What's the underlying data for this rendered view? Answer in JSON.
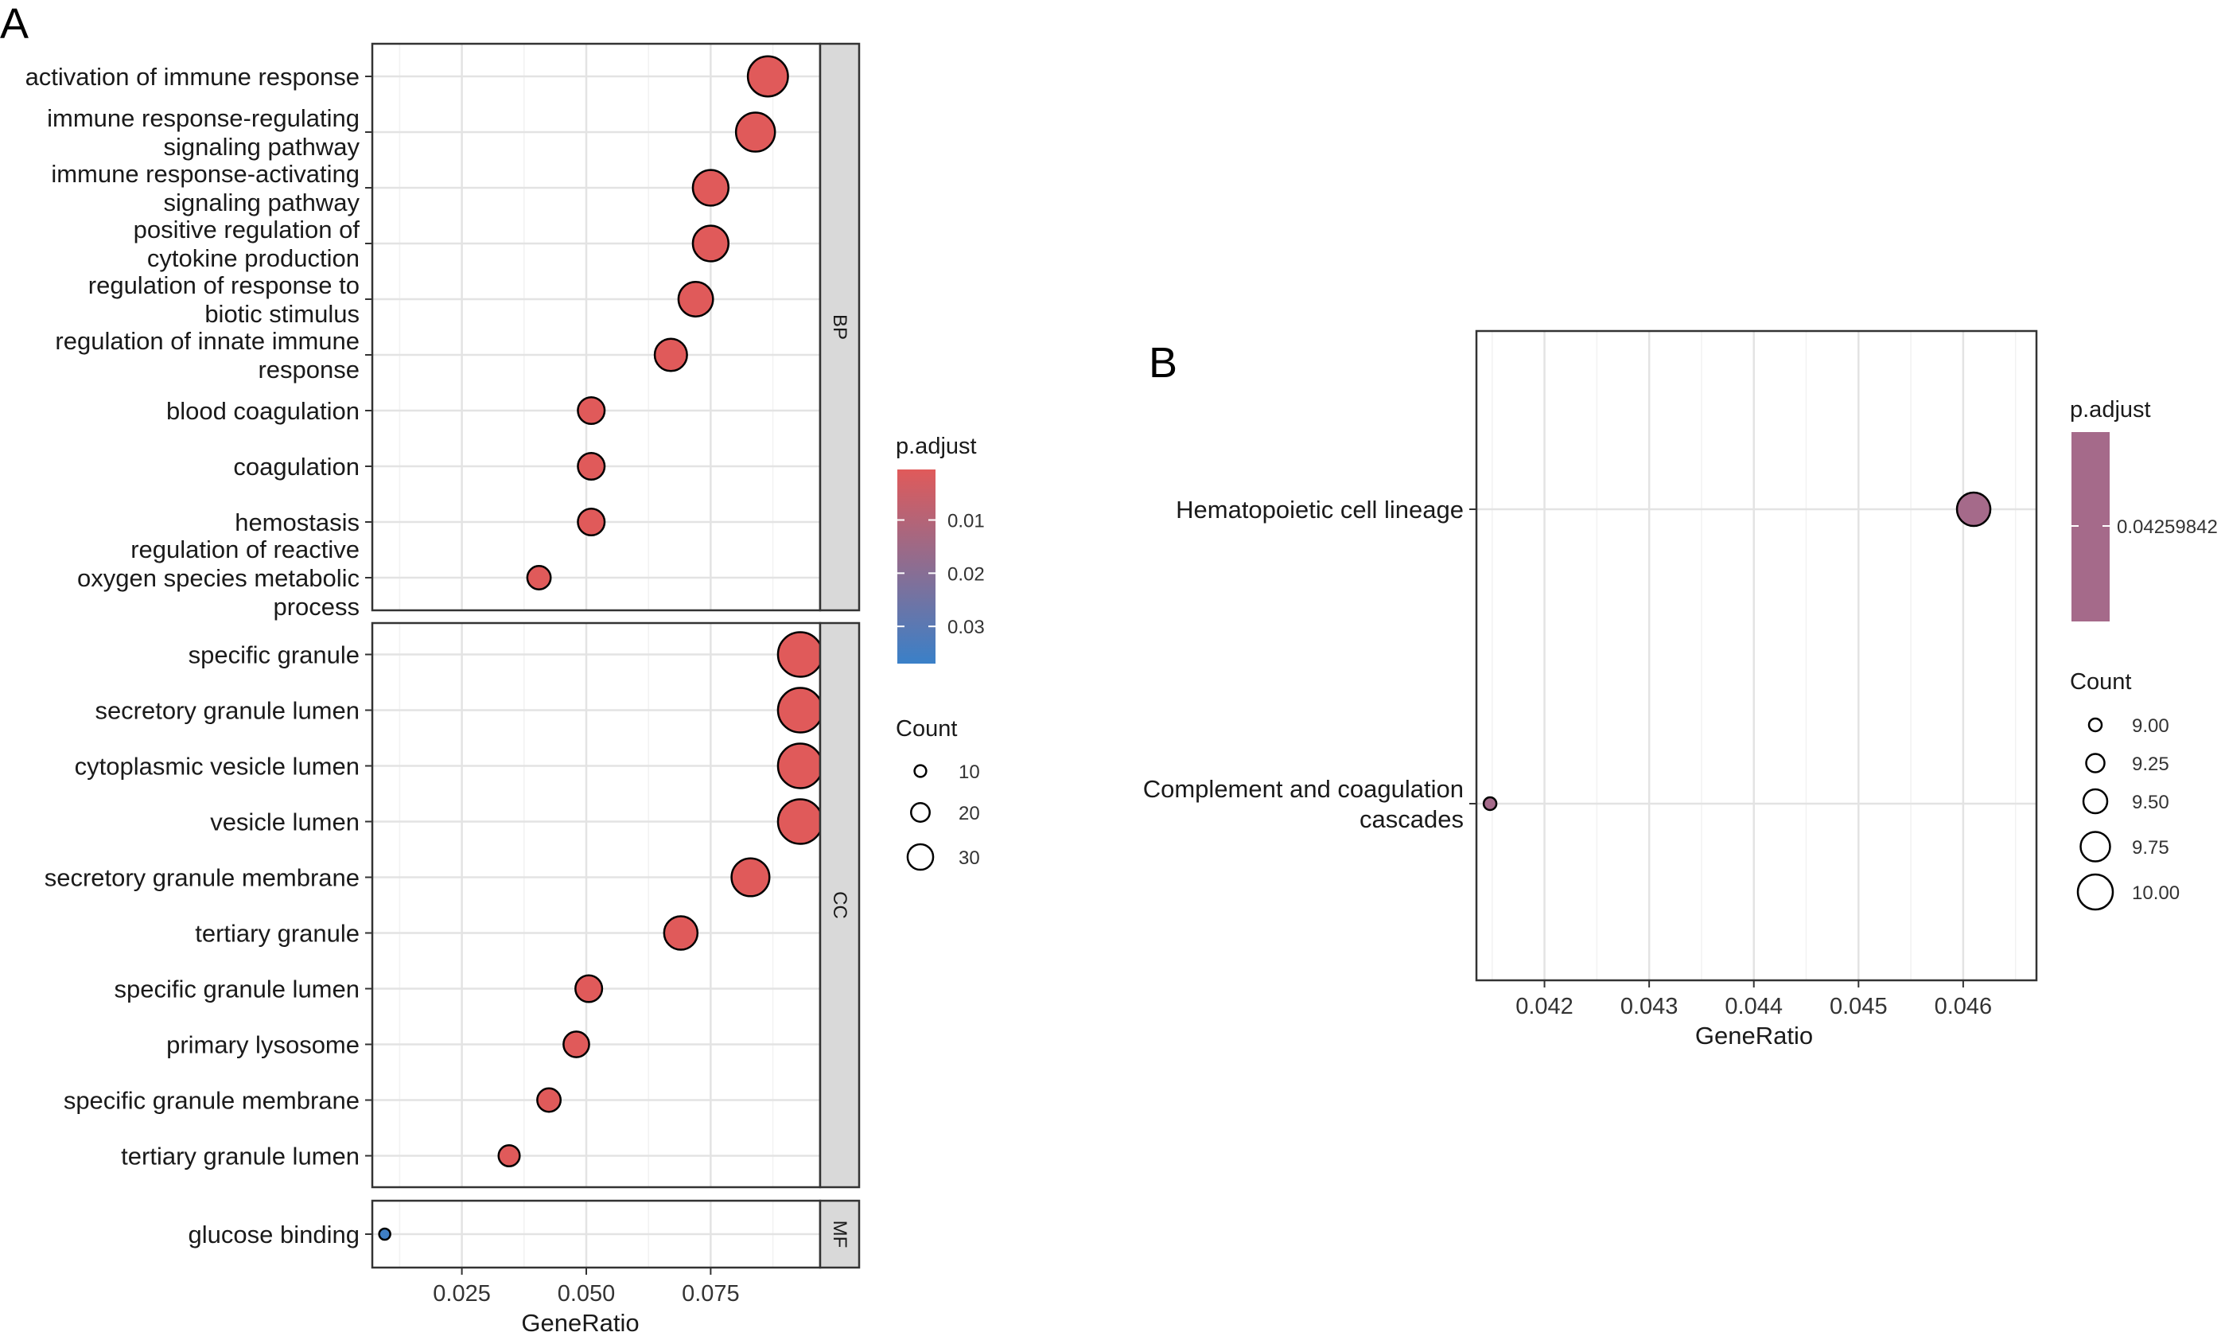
{
  "chart_data": [
    {
      "type": "scatter",
      "panel_label": "A",
      "xlabel": "GeneRatio",
      "xlim": [
        0.007,
        0.097
      ],
      "x_ticks": [
        0.025,
        0.05,
        0.075
      ],
      "x_tick_labels": [
        "0.025",
        "0.050",
        "0.075"
      ],
      "facets": [
        {
          "name": "BP",
          "terms": [
            {
              "label": [
                "activation of immune response"
              ],
              "x": 0.0865,
              "count": 29,
              "p_adjust": 0.0005
            },
            {
              "label": [
                "immune response-regulating",
                "signaling pathway"
              ],
              "x": 0.084,
              "count": 28,
              "p_adjust": 0.0005
            },
            {
              "label": [
                "immune response-activating",
                "signaling pathway"
              ],
              "x": 0.075,
              "count": 25,
              "p_adjust": 0.0005
            },
            {
              "label": [
                "positive regulation of",
                "cytokine production"
              ],
              "x": 0.075,
              "count": 25,
              "p_adjust": 0.0005
            },
            {
              "label": [
                "regulation of response to",
                "biotic stimulus"
              ],
              "x": 0.072,
              "count": 24,
              "p_adjust": 0.0005
            },
            {
              "label": [
                "regulation of innate immune",
                "response"
              ],
              "x": 0.067,
              "count": 22,
              "p_adjust": 0.0005
            },
            {
              "label": [
                "blood coagulation"
              ],
              "x": 0.051,
              "count": 17,
              "p_adjust": 0.0005
            },
            {
              "label": [
                "coagulation"
              ],
              "x": 0.051,
              "count": 17,
              "p_adjust": 0.0005
            },
            {
              "label": [
                "hemostasis"
              ],
              "x": 0.051,
              "count": 17,
              "p_adjust": 0.0005
            },
            {
              "label": [
                "regulation of reactive",
                "oxygen species metabolic",
                "process"
              ],
              "x": 0.0405,
              "count": 14,
              "p_adjust": 0.0005
            }
          ]
        },
        {
          "name": "CC",
          "terms": [
            {
              "label": [
                "specific granule"
              ],
              "x": 0.093,
              "count": 33,
              "p_adjust": 0.0005
            },
            {
              "label": [
                "secretory granule lumen"
              ],
              "x": 0.093,
              "count": 33,
              "p_adjust": 0.0005
            },
            {
              "label": [
                "cytoplasmic vesicle lumen"
              ],
              "x": 0.093,
              "count": 33,
              "p_adjust": 0.0005
            },
            {
              "label": [
                "vesicle lumen"
              ],
              "x": 0.093,
              "count": 33,
              "p_adjust": 0.0005
            },
            {
              "label": [
                "secretory granule membrane"
              ],
              "x": 0.083,
              "count": 27,
              "p_adjust": 0.0005
            },
            {
              "label": [
                "tertiary granule"
              ],
              "x": 0.069,
              "count": 23,
              "p_adjust": 0.0005
            },
            {
              "label": [
                "specific granule lumen"
              ],
              "x": 0.0505,
              "count": 17,
              "p_adjust": 0.0005
            },
            {
              "label": [
                "primary lysosome"
              ],
              "x": 0.048,
              "count": 16,
              "p_adjust": 0.0005
            },
            {
              "label": [
                "specific granule membrane"
              ],
              "x": 0.0425,
              "count": 14,
              "p_adjust": 0.0005
            },
            {
              "label": [
                "tertiary granule lumen"
              ],
              "x": 0.0345,
              "count": 12,
              "p_adjust": 0.0005
            }
          ]
        },
        {
          "name": "MF",
          "terms": [
            {
              "label": [
                "glucose binding"
              ],
              "x": 0.0095,
              "count": 3,
              "p_adjust": 0.036
            }
          ]
        }
      ],
      "legend_color": {
        "title": "p.adjust",
        "ticks": [
          0.01,
          0.02,
          0.03
        ],
        "tick_labels": [
          "0.01",
          "0.02",
          "0.03"
        ],
        "range": [
          0.0005,
          0.037
        ],
        "low_color": "#E05A5A",
        "high_color": "#3A80C8"
      },
      "legend_size": {
        "title": "Count",
        "values": [
          10,
          20,
          30
        ],
        "labels": [
          "10",
          "20",
          "30"
        ]
      }
    },
    {
      "type": "scatter",
      "panel_label": "B",
      "xlabel": "GeneRatio",
      "xlim": [
        0.04135,
        0.0467
      ],
      "x_ticks": [
        0.042,
        0.043,
        0.044,
        0.045,
        0.046
      ],
      "x_tick_labels": [
        "0.042",
        "0.043",
        "0.044",
        "0.045",
        "0.046"
      ],
      "terms": [
        {
          "label": [
            "Hematopoietic cell lineage"
          ],
          "x": 0.0461,
          "count": 10,
          "p_adjust": 0.04259842
        },
        {
          "label": [
            "Complement and coagulation",
            "cascades"
          ],
          "x": 0.04148,
          "count": 9,
          "p_adjust": 0.04259842
        }
      ],
      "legend_color": {
        "title": "p.adjust",
        "tick_label": "0.04259842",
        "color": "#A56A8A"
      },
      "legend_size": {
        "title": "Count",
        "values": [
          9.0,
          9.25,
          9.5,
          9.75,
          10.0
        ],
        "labels": [
          "9.00",
          "9.25",
          "9.50",
          "9.75",
          "10.00"
        ]
      }
    }
  ]
}
